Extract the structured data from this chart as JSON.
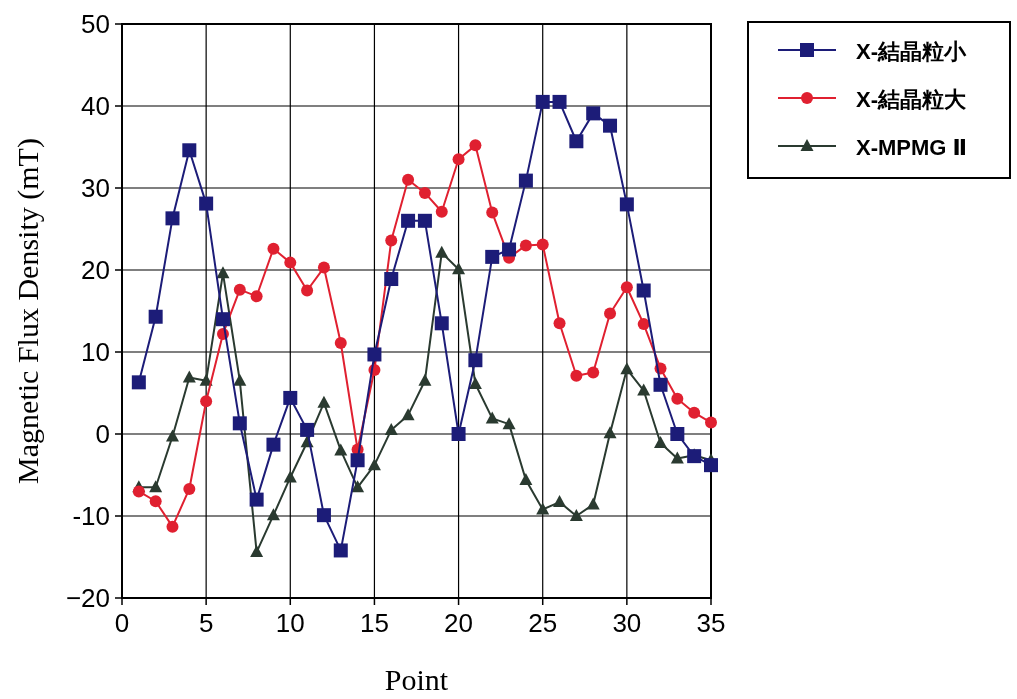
{
  "chart_data": {
    "type": "line",
    "xlabel": "Point",
    "ylabel": "Magnetic Flux Density (mT)",
    "x": [
      1,
      2,
      3,
      4,
      5,
      6,
      7,
      8,
      9,
      10,
      11,
      12,
      13,
      14,
      15,
      16,
      17,
      18,
      19,
      20,
      21,
      22,
      23,
      24,
      25,
      26,
      27,
      28,
      29,
      30,
      31,
      32,
      33,
      34,
      35
    ],
    "series": [
      {
        "name": "X-結晶粒小",
        "color": "#1c1c78",
        "marker": "square",
        "values": [
          6.3,
          14.3,
          26.3,
          34.6,
          28.1,
          14,
          1.3,
          -8,
          -1.3,
          4.4,
          0.5,
          -9.9,
          -14.2,
          -3.2,
          9.7,
          18.9,
          26,
          26,
          13.5,
          0,
          9,
          21.6,
          22.5,
          30.9,
          40.5,
          40.5,
          35.7,
          39.1,
          37.6,
          28,
          17.5,
          6,
          0,
          -2.7,
          -3.8
        ]
      },
      {
        "name": "X-結晶粒大",
        "color": "#e02030",
        "marker": "circle",
        "values": [
          -7,
          -8.2,
          -11.3,
          -6.7,
          4,
          12.2,
          17.6,
          16.8,
          22.6,
          20.9,
          17.5,
          20.3,
          11.1,
          -1.9,
          7.8,
          23.6,
          31,
          29.4,
          27.1,
          33.5,
          35.2,
          27,
          21.5,
          23,
          23.1,
          13.5,
          7.1,
          7.5,
          14.7,
          17.9,
          13.4,
          8,
          4.3,
          2.6,
          1.4
        ]
      },
      {
        "name": "X-MPMG Ⅱ",
        "color": "#2a3a30",
        "marker": "triangle",
        "values": [
          -6.5,
          -6.5,
          -0.3,
          6.9,
          6.5,
          19.6,
          6.5,
          -14.4,
          -9.9,
          -5.3,
          -1,
          3.8,
          -2,
          -6.5,
          -3.8,
          0.5,
          2.3,
          6.5,
          22.1,
          20.1,
          6.1,
          1.9,
          1.2,
          -5.6,
          -9.2,
          -8.3,
          -10,
          -8.6,
          0.1,
          7.9,
          5.3,
          -1.1,
          -3,
          -2.6,
          -3.2
        ]
      }
    ],
    "xlim": [
      0,
      35
    ],
    "xticks": [
      0,
      5,
      10,
      15,
      20,
      25,
      30,
      35
    ],
    "ylim": [
      -20,
      50
    ],
    "yticks": [
      {
        "value": -20,
        "label": "−20"
      },
      -10,
      0,
      10,
      20,
      30,
      40,
      50
    ],
    "grid": true,
    "legend": "top right",
    "line_style": "solid"
  }
}
